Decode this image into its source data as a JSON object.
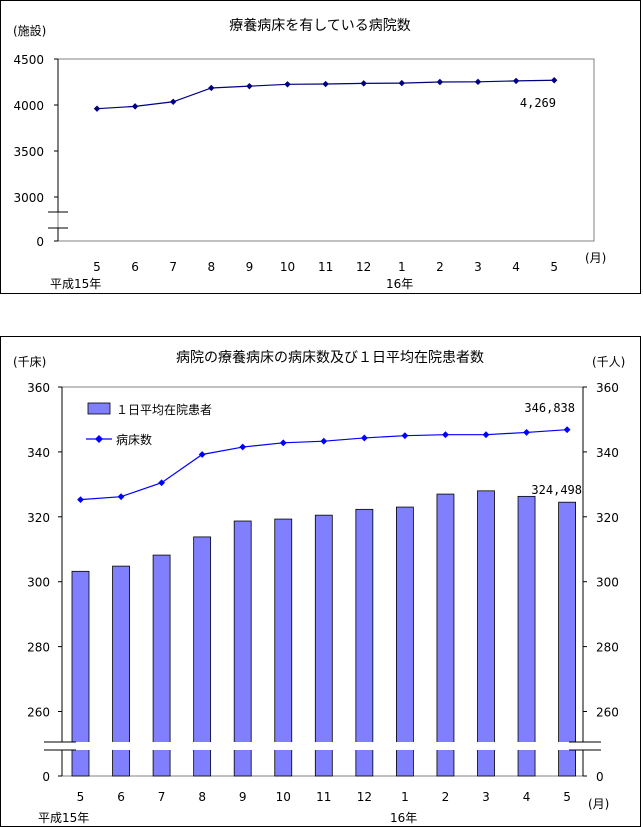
{
  "chart_data": [
    {
      "type": "line",
      "title": "療養病床を有している病院数",
      "ylabel": "(施設)",
      "xunit": "(月)",
      "categories": [
        "5",
        "6",
        "7",
        "8",
        "9",
        "10",
        "11",
        "12",
        "1",
        "2",
        "3",
        "4",
        "5"
      ],
      "year_labels": [
        "平成15年",
        "16年"
      ],
      "y_axis_break": true,
      "ylim": [
        3000,
        4500
      ],
      "yticks": [
        "0",
        "3000",
        "3500",
        "4000",
        "4500"
      ],
      "series": [
        {
          "values": [
            3960,
            3985,
            4035,
            4185,
            4205,
            4225,
            4228,
            4235,
            4238,
            4250,
            4252,
            4262,
            4269
          ],
          "color": "#000080",
          "end_label": "4,269"
        }
      ],
      "grid": false
    },
    {
      "type": "bar+line",
      "title": "病院の療養病床の病床数及び１日平均在院患者数",
      "ylabel_left": "(千床)",
      "ylabel_right": "(千人)",
      "xunit": "(月)",
      "categories": [
        "5",
        "6",
        "7",
        "8",
        "9",
        "10",
        "11",
        "12",
        "1",
        "2",
        "3",
        "4",
        "5"
      ],
      "year_labels": [
        "平成15年",
        "16年"
      ],
      "y_axis_break": true,
      "ylim": [
        250,
        360
      ],
      "yticks": [
        "0",
        "260",
        "280",
        "300",
        "320",
        "340",
        "360"
      ],
      "series": [
        {
          "name": "１日平均在院患者",
          "kind": "bar",
          "color": "#8080ff",
          "values": [
            303.2,
            304.8,
            308.2,
            313.8,
            318.7,
            319.3,
            320.5,
            322.3,
            323.0,
            327.0,
            328.0,
            326.3,
            324.498
          ],
          "end_label": "324,498"
        },
        {
          "name": "病床数",
          "kind": "line",
          "color": "#0000ff",
          "values": [
            325.3,
            326.2,
            330.5,
            339.2,
            341.5,
            342.8,
            343.3,
            344.3,
            345.0,
            345.3,
            345.3,
            346.0,
            346.838
          ],
          "end_label": "346,838"
        }
      ],
      "legend_position": "top-left",
      "grid": false
    }
  ]
}
